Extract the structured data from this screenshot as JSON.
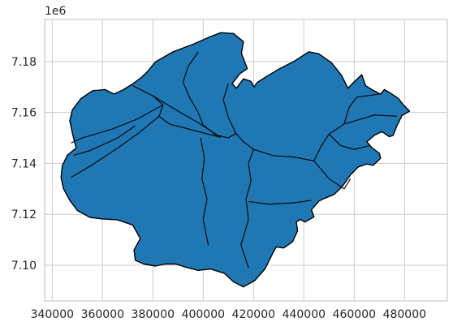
{
  "chart_data": {
    "type": "map",
    "title": "",
    "xlabel": "",
    "ylabel": "",
    "y_offset_label": "1e6",
    "grid": true,
    "x_ticks": [
      340000,
      360000,
      380000,
      400000,
      420000,
      440000,
      460000,
      480000
    ],
    "x_tick_labels": [
      "340000",
      "360000",
      "380000",
      "400000",
      "420000",
      "440000",
      "460000",
      "480000"
    ],
    "y_ticks": [
      7.1,
      7.12,
      7.14,
      7.16,
      7.18
    ],
    "y_tick_labels": [
      "7.10",
      "7.12",
      "7.14",
      "7.16",
      "7.18"
    ],
    "xlim": [
      337000,
      497000
    ],
    "ylim": [
      7.086,
      7.1965
    ],
    "fill_color": "#1f77b4",
    "edge_color": "#000000",
    "grid_color": "#cccccc",
    "outline": [
      [
        381000,
        7.1798
      ],
      [
        388000,
        7.1838
      ],
      [
        396000,
        7.1868
      ],
      [
        403000,
        7.1898
      ],
      [
        407000,
        7.1913
      ],
      [
        412000,
        7.191
      ],
      [
        416000,
        7.1878
      ],
      [
        415200,
        7.1832
      ],
      [
        417500,
        7.1772
      ],
      [
        414500,
        7.1752
      ],
      [
        411500,
        7.1713
      ],
      [
        413200,
        7.1695
      ],
      [
        416000,
        7.1732
      ],
      [
        419000,
        7.1722
      ],
      [
        420200,
        7.17
      ],
      [
        421500,
        7.1718
      ],
      [
        425000,
        7.174
      ],
      [
        430000,
        7.177
      ],
      [
        436000,
        7.18
      ],
      [
        442000,
        7.1838
      ],
      [
        446000,
        7.183
      ],
      [
        451000,
        7.1795
      ],
      [
        455000,
        7.1745
      ],
      [
        457500,
        7.1695
      ],
      [
        460000,
        7.172
      ],
      [
        463000,
        7.1748
      ],
      [
        464500,
        7.1705
      ],
      [
        467000,
        7.169
      ],
      [
        470500,
        7.1672
      ],
      [
        472000,
        7.169
      ],
      [
        474500,
        7.1675
      ],
      [
        477500,
        7.1655
      ],
      [
        479500,
        7.163
      ],
      [
        482000,
        7.1605
      ],
      [
        479000,
        7.1588
      ],
      [
        477000,
        7.1548
      ],
      [
        475500,
        7.151
      ],
      [
        474000,
        7.1505
      ],
      [
        471000,
        7.1525
      ],
      [
        468000,
        7.151
      ],
      [
        465000,
        7.1485
      ],
      [
        467000,
        7.1462
      ],
      [
        470000,
        7.144
      ],
      [
        470500,
        7.142
      ],
      [
        467500,
        7.1392
      ],
      [
        465000,
        7.1398
      ],
      [
        461500,
        7.1385
      ],
      [
        458500,
        7.1355
      ],
      [
        455500,
        7.1312
      ],
      [
        452000,
        7.1278
      ],
      [
        448000,
        7.1262
      ],
      [
        446000,
        7.1252
      ],
      [
        443000,
        7.1218
      ],
      [
        444000,
        7.119
      ],
      [
        440500,
        7.117
      ],
      [
        438500,
        7.118
      ],
      [
        437000,
        7.117
      ],
      [
        437500,
        7.1135
      ],
      [
        435500,
        7.1092
      ],
      [
        432000,
        7.1068
      ],
      [
        429000,
        7.1072
      ],
      [
        427500,
        7.1045
      ],
      [
        424500,
        7.0985
      ],
      [
        420500,
        7.094
      ],
      [
        416000,
        7.0915
      ],
      [
        412000,
        7.0935
      ],
      [
        408500,
        7.0968
      ],
      [
        403000,
        7.0985
      ],
      [
        398000,
        7.098
      ],
      [
        394000,
        7.099
      ],
      [
        389000,
        7.1005
      ],
      [
        385000,
        7.1005
      ],
      [
        381000,
        7.0997
      ],
      [
        376500,
        7.1005
      ],
      [
        373000,
        7.102
      ],
      [
        372500,
        7.106
      ],
      [
        375000,
        7.1105
      ],
      [
        372000,
        7.1158
      ],
      [
        366000,
        7.1178
      ],
      [
        360000,
        7.1182
      ],
      [
        355000,
        7.1188
      ],
      [
        350000,
        7.1215
      ],
      [
        347000,
        7.1255
      ],
      [
        344500,
        7.13
      ],
      [
        343500,
        7.1345
      ],
      [
        344000,
        7.139
      ],
      [
        346000,
        7.1432
      ],
      [
        349500,
        7.146
      ],
      [
        348000,
        7.152
      ],
      [
        347000,
        7.1568
      ],
      [
        348000,
        7.161
      ],
      [
        351500,
        7.1655
      ],
      [
        356000,
        7.1685
      ],
      [
        361000,
        7.169
      ],
      [
        364500,
        7.1672
      ],
      [
        368000,
        7.1688
      ],
      [
        372000,
        7.1712
      ],
      [
        375500,
        7.1738
      ],
      [
        378000,
        7.1762
      ]
    ],
    "internal_boundaries": [
      [
        [
          372000,
          7.1705
        ],
        [
          380000,
          7.1665
        ],
        [
          384000,
          7.163
        ],
        [
          382500,
          7.1585
        ],
        [
          374500,
          7.152
        ],
        [
          366000,
          7.146
        ],
        [
          356000,
          7.1395
        ],
        [
          347500,
          7.1345
        ]
      ],
      [
        [
          380000,
          7.1665
        ],
        [
          390000,
          7.1605
        ],
        [
          398000,
          7.156
        ],
        [
          407000,
          7.1502
        ]
      ],
      [
        [
          382500,
          7.1585
        ],
        [
          386500,
          7.1555
        ],
        [
          398000,
          7.1525
        ],
        [
          407000,
          7.1502
        ]
      ],
      [
        [
          384000,
          7.163
        ],
        [
          374000,
          7.1575
        ],
        [
          364000,
          7.1535
        ],
        [
          352000,
          7.15
        ],
        [
          347500,
          7.148
        ]
      ],
      [
        [
          373000,
          7.1548
        ],
        [
          366000,
          7.15
        ],
        [
          355000,
          7.145
        ],
        [
          348500,
          7.1432
        ]
      ],
      [
        [
          398000,
          7.1838
        ],
        [
          394000,
          7.178
        ],
        [
          392000,
          7.172
        ],
        [
          394500,
          7.166
        ],
        [
          398000,
          7.16
        ],
        [
          400000,
          7.155
        ],
        [
          405000,
          7.1512
        ]
      ],
      [
        [
          410000,
          7.1713
        ],
        [
          408000,
          7.165
        ],
        [
          410000,
          7.158
        ],
        [
          413000,
          7.1518
        ]
      ],
      [
        [
          405000,
          7.1512
        ],
        [
          410000,
          7.15
        ],
        [
          413000,
          7.1518
        ],
        [
          416000,
          7.1485
        ],
        [
          420000,
          7.1455
        ],
        [
          428000,
          7.143
        ],
        [
          436000,
          7.1425
        ],
        [
          444000,
          7.141
        ]
      ],
      [
        [
          420000,
          7.1455
        ],
        [
          418000,
          7.14
        ],
        [
          419000,
          7.133
        ],
        [
          417000,
          7.126
        ],
        [
          418000,
          7.118
        ],
        [
          415000,
          7.108
        ],
        [
          418000,
          7.099
        ]
      ],
      [
        [
          418000,
          7.125
        ],
        [
          426000,
          7.124
        ],
        [
          436000,
          7.1245
        ],
        [
          443000,
          7.1255
        ]
      ],
      [
        [
          399000,
          7.15
        ],
        [
          400500,
          7.142
        ],
        [
          399500,
          7.134
        ],
        [
          401500,
          7.126
        ],
        [
          400000,
          7.118
        ],
        [
          402000,
          7.108
        ]
      ],
      [
        [
          444000,
          7.141
        ],
        [
          447000,
          7.147
        ],
        [
          450000,
          7.1515
        ],
        [
          456000,
          7.1555
        ],
        [
          463000,
          7.1575
        ],
        [
          468000,
          7.159
        ],
        [
          477000,
          7.1585
        ]
      ],
      [
        [
          450000,
          7.1515
        ],
        [
          454500,
          7.147
        ],
        [
          460000,
          7.1455
        ],
        [
          466500,
          7.147
        ]
      ],
      [
        [
          444000,
          7.141
        ],
        [
          450000,
          7.134
        ],
        [
          456000,
          7.13
        ],
        [
          458500,
          7.134
        ]
      ],
      [
        [
          456000,
          7.1555
        ],
        [
          458000,
          7.162
        ],
        [
          461000,
          7.166
        ],
        [
          470000,
          7.1672
        ]
      ]
    ]
  }
}
